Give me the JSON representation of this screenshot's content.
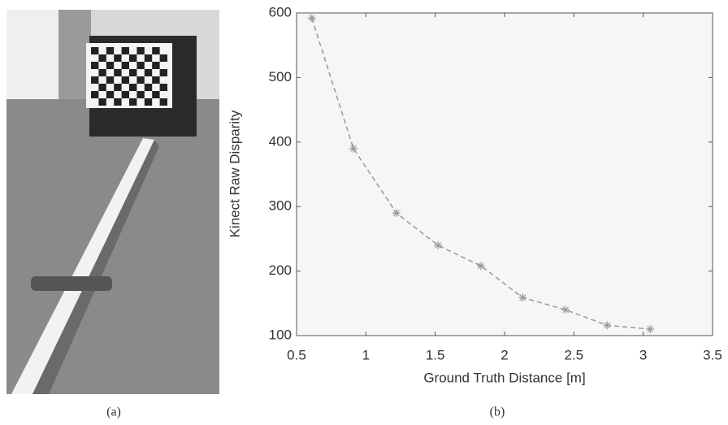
{
  "chart_data": {
    "type": "line",
    "xlabel": "Ground Truth Distance [m]",
    "ylabel": "Kinect Raw Disparity",
    "x": [
      0.61,
      0.91,
      1.22,
      1.52,
      1.83,
      2.13,
      2.44,
      2.74,
      3.05
    ],
    "values": [
      592,
      390,
      290,
      240,
      208,
      159,
      140,
      116,
      110
    ],
    "color": "#999999",
    "xlim": [
      0.5,
      3.5
    ],
    "xticks": [
      0.5,
      1,
      1.5,
      2,
      2.5,
      3,
      3.5
    ],
    "ylim": [
      100,
      600
    ],
    "yticks": [
      100,
      200,
      300,
      400,
      500,
      600
    ],
    "grid": false
  },
  "captions": [
    "(a)",
    "(b)"
  ]
}
